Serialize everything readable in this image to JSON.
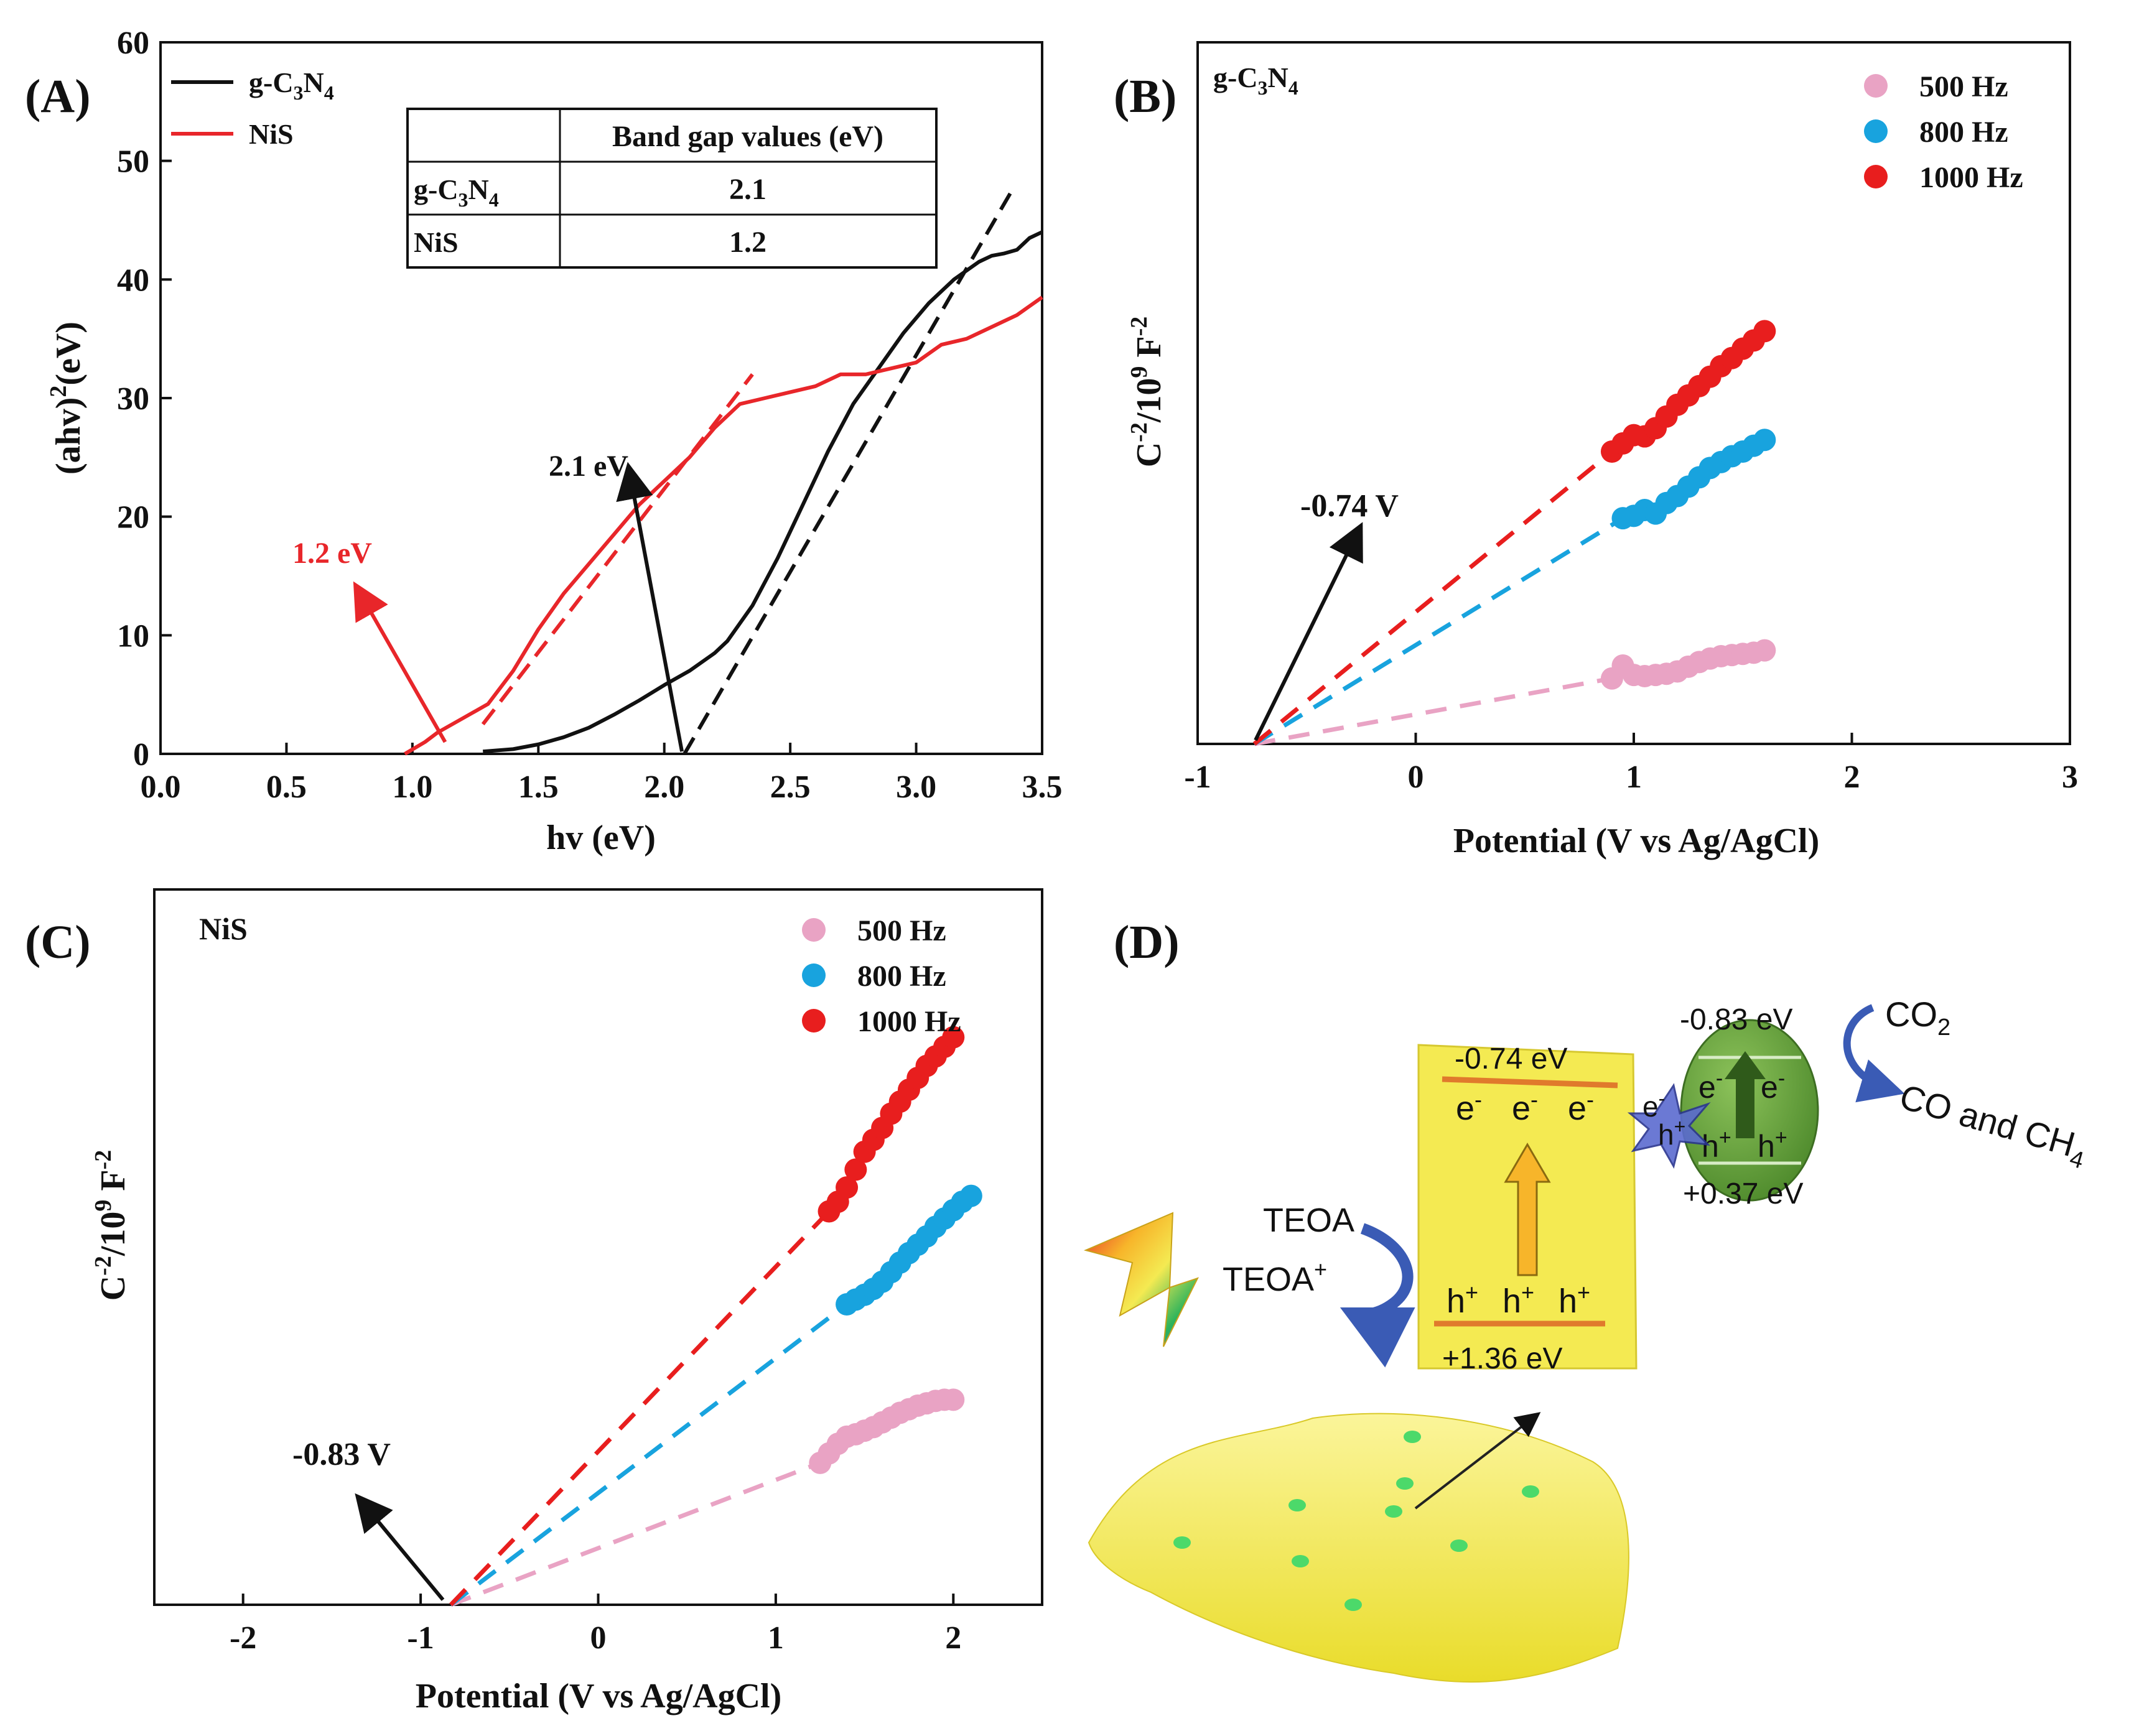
{
  "colors": {
    "gcn": "#111111",
    "nis": "#e8262a",
    "f500": "#e9a3c4",
    "f800": "#18a3de",
    "f1000": "#e81e1e",
    "semi_yellow": "#f4ea52",
    "nis_green": "#6aa83c",
    "band_line": "#e07a2c",
    "teoa_arrow": "#3a5bb5"
  },
  "panels": {
    "A": {
      "label": "(A)",
      "legend": [
        {
          "name_base": "g-C",
          "sub1": "3",
          "mid": "N",
          "sub2": "4",
          "color": "#111111"
        },
        {
          "name_base": "NiS",
          "color": "#e8262a"
        }
      ],
      "table": {
        "header": "Band gap values (eV)",
        "rows": [
          {
            "name_base": "g-C",
            "sub1": "3",
            "mid": "N",
            "sub2": "4",
            "value": "2.1"
          },
          {
            "name_base": "NiS",
            "value": "1.2"
          }
        ]
      },
      "annotations": {
        "gcn": "2.1 eV",
        "nis": "1.2 eV"
      }
    },
    "B": {
      "label": "(B)",
      "title_base": "g-C",
      "title_sub1": "3",
      "title_mid": "N",
      "title_sub2": "4",
      "annotation": "-0.74 V"
    },
    "C": {
      "label": "(C)",
      "title": "NiS",
      "annotation": "-0.83 V"
    },
    "D": {
      "label": "(D)",
      "gcn_cb": "-0.74 eV",
      "gcn_vb": "+1.36 eV",
      "nis_cb": "-0.83 eV",
      "nis_vb": "+0.37 eV",
      "electron": "e",
      "electron_sup": "-",
      "hole": "h",
      "hole_sup": "+",
      "teoa": "TEOA",
      "teoa_ox_base": "TEOA",
      "teoa_ox_sup": "+",
      "co2_base": "CO",
      "co2_sub": "2",
      "products_base": "CO and CH",
      "products_sub": "4"
    }
  },
  "chart_data": [
    {
      "type": "line",
      "panel": "A",
      "xlabel": "hv (eV)",
      "ylabel_pre": "(ahv)",
      "ylabel_sup": "2",
      "ylabel_post": "(eV)",
      "xlim": [
        0.0,
        3.5
      ],
      "ylim": [
        0,
        60
      ],
      "xticks": [
        0.0,
        0.5,
        1.0,
        1.5,
        2.0,
        2.5,
        3.0,
        3.5
      ],
      "yticks": [
        0,
        10,
        20,
        30,
        40,
        50,
        60
      ],
      "xtick_labels": [
        "0.0",
        "0.5",
        "1.0",
        "1.5",
        "2.0",
        "2.5",
        "3.0",
        "3.5"
      ],
      "ytick_labels": [
        "0",
        "10",
        "20",
        "30",
        "40",
        "50",
        "60"
      ],
      "series": [
        {
          "name": "g-C3N4",
          "color": "#111111",
          "x": [
            1.28,
            1.4,
            1.5,
            1.6,
            1.7,
            1.8,
            1.9,
            2.0,
            2.1,
            2.2,
            2.25,
            2.35,
            2.45,
            2.55,
            2.65,
            2.75,
            2.85,
            2.95,
            3.05,
            3.15,
            3.25,
            3.3,
            3.35,
            3.4,
            3.45,
            3.5
          ],
          "y": [
            0.2,
            0.4,
            0.8,
            1.4,
            2.2,
            3.3,
            4.5,
            5.8,
            7.0,
            8.5,
            9.5,
            12.5,
            16.5,
            21.0,
            25.5,
            29.5,
            32.5,
            35.5,
            38.0,
            40.0,
            41.5,
            42.0,
            42.2,
            42.5,
            43.5,
            44.0
          ]
        },
        {
          "name": "NiS",
          "color": "#e8262a",
          "x": [
            0.97,
            1.05,
            1.1,
            1.2,
            1.3,
            1.4,
            1.5,
            1.6,
            1.7,
            1.8,
            1.9,
            2.0,
            2.1,
            2.2,
            2.3,
            2.4,
            2.5,
            2.6,
            2.7,
            2.8,
            2.9,
            3.0,
            3.1,
            3.2,
            3.3,
            3.4,
            3.5
          ],
          "y": [
            0.0,
            1.0,
            1.8,
            3.0,
            4.2,
            7.0,
            10.5,
            13.5,
            16.0,
            18.5,
            21.0,
            23.0,
            25.0,
            27.5,
            29.5,
            30.0,
            30.5,
            31.0,
            32.0,
            32.0,
            32.5,
            33.0,
            34.5,
            35.0,
            36.0,
            37.0,
            38.5
          ]
        }
      ],
      "fits": [
        {
          "color": "#111111",
          "x": [
            2.08,
            3.38
          ],
          "y": [
            0,
            47.5
          ]
        },
        {
          "color": "#e8262a",
          "x": [
            1.28,
            2.35
          ],
          "y": [
            2.5,
            32
          ]
        }
      ],
      "arrows": [
        {
          "color": "#111111",
          "from": [
            2.07,
            0.2
          ],
          "to": [
            1.86,
            24.0
          ]
        },
        {
          "color": "#e8262a",
          "from": [
            1.13,
            1.0
          ],
          "to": [
            0.78,
            14.0
          ]
        }
      ]
    },
    {
      "type": "scatter",
      "panel": "B",
      "xlabel": "Potential (V vs Ag/AgCl)",
      "ylabel_pre": "C",
      "ylabel_sup1": "-2",
      "ylabel_mid": "/10",
      "ylabel_sup2": "9",
      "ylabel_post": " F",
      "ylabel_sup3": "-2",
      "xlim": [
        -1,
        3
      ],
      "ylim": [
        0,
        60
      ],
      "xticks": [
        -1,
        0,
        1,
        2,
        3
      ],
      "xtick_labels": [
        "-1",
        "0",
        "1",
        "2",
        "3"
      ],
      "intercept": -0.74,
      "series": [
        {
          "name": "500 Hz",
          "color": "#e9a3c4",
          "x": [
            0.9,
            0.95,
            1.0,
            1.05,
            1.1,
            1.15,
            1.2,
            1.25,
            1.3,
            1.35,
            1.4,
            1.45,
            1.5,
            1.55,
            1.6
          ],
          "y": [
            5.6,
            6.7,
            5.9,
            5.8,
            5.9,
            6.0,
            6.2,
            6.6,
            7.0,
            7.3,
            7.5,
            7.6,
            7.7,
            7.8,
            8.0
          ]
        },
        {
          "name": "800 Hz",
          "color": "#18a3de",
          "x": [
            0.95,
            1.0,
            1.05,
            1.1,
            1.15,
            1.2,
            1.25,
            1.3,
            1.35,
            1.4,
            1.45,
            1.5,
            1.55,
            1.6
          ],
          "y": [
            19.3,
            19.5,
            20.0,
            19.7,
            20.6,
            21.2,
            22.0,
            22.8,
            23.6,
            24.1,
            24.6,
            25.0,
            25.5,
            26.0
          ]
        },
        {
          "name": "1000 Hz",
          "color": "#e81e1e",
          "x": [
            0.9,
            0.95,
            1.0,
            1.05,
            1.1,
            1.15,
            1.2,
            1.25,
            1.3,
            1.35,
            1.4,
            1.45,
            1.5,
            1.55,
            1.6
          ],
          "y": [
            25.0,
            25.7,
            26.4,
            26.3,
            27.0,
            28.0,
            29.0,
            29.8,
            30.6,
            31.4,
            32.3,
            33.0,
            33.8,
            34.5,
            35.3
          ]
        }
      ]
    },
    {
      "type": "scatter",
      "panel": "C",
      "xlabel": "Potential (V vs Ag/AgCl)",
      "ylabel_pre": "C",
      "ylabel_sup1": "-2",
      "ylabel_mid": "/10",
      "ylabel_sup2": "9",
      "ylabel_post": " F",
      "ylabel_sup3": "-2",
      "xlim": [
        -2.5,
        2.5
      ],
      "ylim": [
        0,
        60
      ],
      "xticks": [
        -2,
        -1,
        0,
        1,
        2
      ],
      "xtick_labels": [
        "-2",
        "-1",
        "0",
        "1",
        "2"
      ],
      "intercept": -0.83,
      "series": [
        {
          "name": "500 Hz",
          "color": "#e9a3c4",
          "x": [
            1.25,
            1.3,
            1.35,
            1.4,
            1.45,
            1.5,
            1.55,
            1.6,
            1.65,
            1.7,
            1.75,
            1.8,
            1.85,
            1.9,
            1.95,
            2.0
          ],
          "y": [
            11.9,
            12.7,
            13.5,
            14.1,
            14.3,
            14.6,
            14.9,
            15.3,
            15.7,
            16.1,
            16.4,
            16.7,
            16.9,
            17.1,
            17.2,
            17.2
          ]
        },
        {
          "name": "800 Hz",
          "color": "#18a3de",
          "x": [
            1.4,
            1.45,
            1.5,
            1.55,
            1.6,
            1.65,
            1.7,
            1.75,
            1.8,
            1.85,
            1.9,
            1.95,
            2.0,
            2.05,
            2.1
          ],
          "y": [
            25.2,
            25.6,
            26.0,
            26.5,
            27.1,
            27.9,
            28.7,
            29.5,
            30.2,
            30.9,
            31.7,
            32.4,
            33.1,
            33.8,
            34.3
          ]
        },
        {
          "name": "1000 Hz",
          "color": "#e81e1e",
          "x": [
            1.3,
            1.35,
            1.4,
            1.45,
            1.5,
            1.55,
            1.6,
            1.65,
            1.7,
            1.75,
            1.8,
            1.85,
            1.9,
            1.95,
            2.0
          ],
          "y": [
            33.0,
            33.8,
            35.0,
            36.5,
            38.0,
            39.0,
            40.0,
            41.2,
            42.2,
            43.2,
            44.2,
            45.2,
            46.0,
            46.8,
            47.6
          ]
        }
      ]
    }
  ]
}
